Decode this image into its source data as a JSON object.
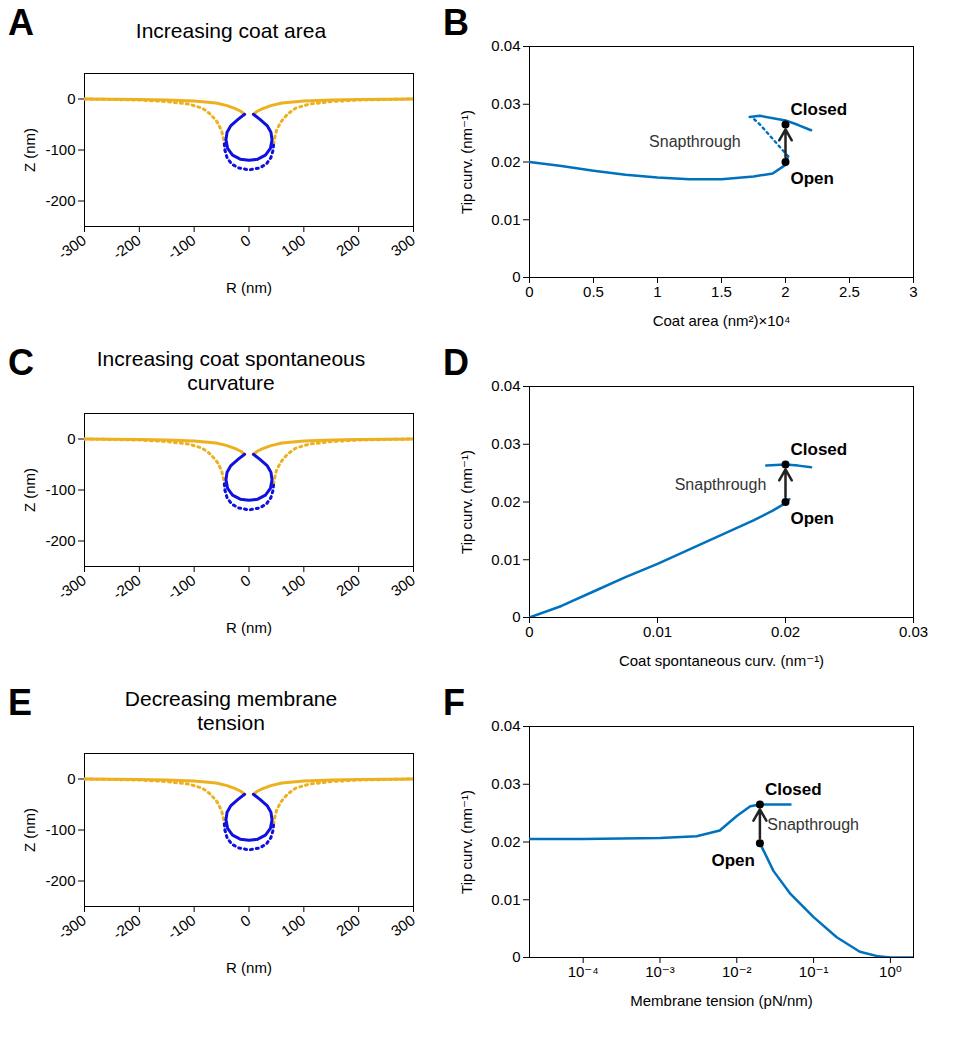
{
  "chart_data": [
    {
      "panel": "A",
      "type": "line",
      "title": "Increasing coat area",
      "x_label": "R (nm)",
      "y_label": "Z (nm)",
      "xlim": [
        -300,
        300
      ],
      "xticks": [
        -300,
        -200,
        -100,
        0,
        100,
        200,
        300
      ],
      "ylim": [
        -250,
        50
      ],
      "yticks": [
        -200,
        -100,
        0
      ],
      "series": [
        {
          "color": "#EDB120",
          "line_style": "dotted",
          "x": [
            -300,
            -200,
            -150,
            -110,
            -85,
            -70,
            -58,
            -50,
            -46,
            -45,
            null,
            45,
            46,
            50,
            58,
            70,
            85,
            110,
            150,
            200,
            300
          ],
          "y": [
            0,
            -2,
            -5,
            -10,
            -18,
            -30,
            -45,
            -62,
            -80,
            -88,
            null,
            -88,
            -80,
            -62,
            -45,
            -30,
            -18,
            -10,
            -5,
            -2,
            0
          ]
        },
        {
          "color": "#1010E0",
          "line_style": "dotted",
          "x": [
            -45,
            -44,
            -40,
            -32,
            -20,
            0,
            20,
            32,
            40,
            44,
            45
          ],
          "y": [
            -88,
            -100,
            -115,
            -127,
            -135,
            -139,
            -135,
            -127,
            -115,
            -100,
            -88
          ]
        },
        {
          "color": "#EDB120",
          "line_style": "solid",
          "x": [
            -300,
            -200,
            -150,
            -100,
            -60,
            -40,
            -25,
            -15,
            -8,
            null,
            8,
            15,
            25,
            40,
            60,
            100,
            150,
            200,
            300
          ],
          "y": [
            0,
            -1,
            -2,
            -4,
            -8,
            -13,
            -19,
            -24,
            -30,
            null,
            -30,
            -24,
            -19,
            -13,
            -8,
            -4,
            -2,
            -1,
            0
          ]
        },
        {
          "color": "#1010E0",
          "line_style": "solid",
          "x": [
            -8,
            -20,
            -33,
            -40,
            -42,
            -39,
            -30,
            -16,
            0,
            16,
            30,
            39,
            42,
            40,
            33,
            20,
            8
          ],
          "y": [
            -30,
            -40,
            -52,
            -65,
            -80,
            -97,
            -110,
            -118,
            -120,
            -118,
            -110,
            -97,
            -80,
            -65,
            -52,
            -40,
            -30
          ]
        }
      ]
    },
    {
      "panel": "B",
      "type": "line",
      "x_label": "Coat area (nm²)×10⁴",
      "y_label": "Tip curv. (nm⁻¹)",
      "xlim": [
        0,
        3
      ],
      "xticks": [
        0,
        0.5,
        1,
        1.5,
        2,
        2.5,
        3
      ],
      "ylim": [
        0,
        0.04
      ],
      "yticks": [
        0,
        0.01,
        0.02,
        0.03,
        0.04
      ],
      "series": [
        {
          "color": "#0072BD",
          "line_style": "solid",
          "x": [
            0,
            0.25,
            0.5,
            0.75,
            1,
            1.25,
            1.5,
            1.75,
            1.9,
            2.0,
            2.02
          ],
          "y": [
            0.02,
            0.0193,
            0.0185,
            0.0178,
            0.0173,
            0.017,
            0.017,
            0.0175,
            0.018,
            0.0195,
            0.021
          ]
        },
        {
          "color": "#0072BD",
          "line_style": "dotted",
          "x": [
            2.02,
            1.9,
            1.8,
            1.75
          ],
          "y": [
            0.021,
            0.024,
            0.0265,
            0.0275
          ]
        },
        {
          "color": "#0072BD",
          "line_style": "solid",
          "x": [
            1.72,
            1.8,
            2.0,
            2.1,
            2.2
          ],
          "y": [
            0.0278,
            0.028,
            0.0272,
            0.0264,
            0.0255
          ]
        }
      ],
      "points": [
        {
          "name": "Open",
          "x": 2.0,
          "y": 0.02
        },
        {
          "name": "Closed",
          "x": 2.0,
          "y": 0.0265
        }
      ],
      "annotations": [
        {
          "text": "Snapthrough",
          "x": 1.65,
          "y": 0.0235
        }
      ]
    },
    {
      "panel": "C",
      "type": "line",
      "title": "Increasing coat spontaneous curvature",
      "x_label": "R (nm)",
      "y_label": "Z (nm)",
      "xlim": [
        -300,
        300
      ],
      "xticks": [
        -300,
        -200,
        -100,
        0,
        100,
        200,
        300
      ],
      "ylim": [
        -250,
        50
      ],
      "yticks": [
        -200,
        -100,
        0
      ],
      "series": [
        {
          "color": "#EDB120",
          "line_style": "dotted",
          "x": [
            -300,
            -200,
            -150,
            -110,
            -85,
            -70,
            -58,
            -50,
            -46,
            -45,
            null,
            45,
            46,
            50,
            58,
            70,
            85,
            110,
            150,
            200,
            300
          ],
          "y": [
            0,
            -2,
            -5,
            -10,
            -18,
            -30,
            -45,
            -62,
            -80,
            -88,
            null,
            -88,
            -80,
            -62,
            -45,
            -30,
            -18,
            -10,
            -5,
            -2,
            0
          ]
        },
        {
          "color": "#1010E0",
          "line_style": "dotted",
          "x": [
            -45,
            -44,
            -40,
            -32,
            -20,
            0,
            20,
            32,
            40,
            44,
            45
          ],
          "y": [
            -88,
            -100,
            -115,
            -127,
            -135,
            -139,
            -135,
            -127,
            -115,
            -100,
            -88
          ]
        },
        {
          "color": "#EDB120",
          "line_style": "solid",
          "x": [
            -300,
            -200,
            -150,
            -100,
            -60,
            -40,
            -25,
            -15,
            -8,
            null,
            8,
            15,
            25,
            40,
            60,
            100,
            150,
            200,
            300
          ],
          "y": [
            0,
            -1,
            -2,
            -4,
            -8,
            -13,
            -19,
            -24,
            -30,
            null,
            -30,
            -24,
            -19,
            -13,
            -8,
            -4,
            -2,
            -1,
            0
          ]
        },
        {
          "color": "#1010E0",
          "line_style": "solid",
          "x": [
            -8,
            -20,
            -33,
            -40,
            -42,
            -39,
            -30,
            -16,
            0,
            16,
            30,
            39,
            42,
            40,
            33,
            20,
            8
          ],
          "y": [
            -30,
            -40,
            -52,
            -65,
            -80,
            -97,
            -110,
            -118,
            -120,
            -118,
            -110,
            -97,
            -80,
            -65,
            -52,
            -40,
            -30
          ]
        }
      ]
    },
    {
      "panel": "D",
      "type": "line",
      "x_label": "Coat spontaneous curv. (nm⁻¹)",
      "y_label": "Tip curv. (nm⁻¹)",
      "xlim": [
        0,
        0.03
      ],
      "xticks": [
        0,
        0.01,
        0.02,
        0.03
      ],
      "ylim": [
        0,
        0.04
      ],
      "yticks": [
        0,
        0.01,
        0.02,
        0.03,
        0.04
      ],
      "series": [
        {
          "color": "#0072BD",
          "line_style": "solid",
          "x": [
            0,
            0.0025,
            0.005,
            0.0075,
            0.01,
            0.0125,
            0.015,
            0.0175,
            0.019,
            0.02,
            0.0203
          ],
          "y": [
            0,
            0.002,
            0.0045,
            0.007,
            0.0093,
            0.0118,
            0.0143,
            0.0168,
            0.0185,
            0.0198,
            0.0205
          ]
        },
        {
          "color": "#0072BD",
          "line_style": "solid",
          "x": [
            0.0185,
            0.02,
            0.021,
            0.022
          ],
          "y": [
            0.0263,
            0.0265,
            0.0263,
            0.026
          ]
        }
      ],
      "points": [
        {
          "name": "Open",
          "x": 0.02,
          "y": 0.02
        },
        {
          "name": "Closed",
          "x": 0.02,
          "y": 0.0265
        }
      ],
      "annotations": [
        {
          "text": "Snapthrough",
          "x": 0.0185,
          "y": 0.023
        }
      ]
    },
    {
      "panel": "E",
      "type": "line",
      "title": "Decreasing membrane tension",
      "x_label": "R (nm)",
      "y_label": "Z (nm)",
      "xlim": [
        -300,
        300
      ],
      "xticks": [
        -300,
        -200,
        -100,
        0,
        100,
        200,
        300
      ],
      "ylim": [
        -250,
        50
      ],
      "yticks": [
        -200,
        -100,
        0
      ],
      "series": [
        {
          "color": "#EDB120",
          "line_style": "dotted",
          "x": [
            -300,
            -200,
            -150,
            -110,
            -85,
            -70,
            -58,
            -50,
            -46,
            -45,
            null,
            45,
            46,
            50,
            58,
            70,
            85,
            110,
            150,
            200,
            300
          ],
          "y": [
            0,
            -2,
            -5,
            -10,
            -18,
            -30,
            -45,
            -62,
            -80,
            -88,
            null,
            -88,
            -80,
            -62,
            -45,
            -30,
            -18,
            -10,
            -5,
            -2,
            0
          ]
        },
        {
          "color": "#1010E0",
          "line_style": "dotted",
          "x": [
            -45,
            -44,
            -40,
            -32,
            -20,
            0,
            20,
            32,
            40,
            44,
            45
          ],
          "y": [
            -88,
            -100,
            -115,
            -127,
            -135,
            -139,
            -135,
            -127,
            -115,
            -100,
            -88
          ]
        },
        {
          "color": "#EDB120",
          "line_style": "solid",
          "x": [
            -300,
            -200,
            -150,
            -100,
            -60,
            -40,
            -25,
            -15,
            -8,
            null,
            8,
            15,
            25,
            40,
            60,
            100,
            150,
            200,
            300
          ],
          "y": [
            0,
            -1,
            -2,
            -4,
            -8,
            -13,
            -19,
            -24,
            -30,
            null,
            -30,
            -24,
            -19,
            -13,
            -8,
            -4,
            -2,
            -1,
            0
          ]
        },
        {
          "color": "#1010E0",
          "line_style": "solid",
          "x": [
            -8,
            -20,
            -33,
            -40,
            -42,
            -39,
            -30,
            -16,
            0,
            16,
            30,
            39,
            42,
            40,
            33,
            20,
            8
          ],
          "y": [
            -30,
            -40,
            -52,
            -65,
            -80,
            -97,
            -110,
            -118,
            -120,
            -118,
            -110,
            -97,
            -80,
            -65,
            -52,
            -40,
            -30
          ]
        }
      ]
    },
    {
      "panel": "F",
      "type": "line",
      "log": "x",
      "x_label": "Membrane tension (pN/nm)",
      "y_label": "Tip curv. (nm⁻¹)",
      "xlim": [
        2e-05,
        2
      ],
      "xticks": [
        {
          "value": 0.0001,
          "label": "10⁻⁴"
        },
        {
          "value": 0.001,
          "label": "10⁻³"
        },
        {
          "value": 0.01,
          "label": "10⁻²"
        },
        {
          "value": 0.1,
          "label": "10⁻¹"
        },
        {
          "value": 1,
          "label": "10⁰"
        }
      ],
      "ylim": [
        0,
        0.04
      ],
      "yticks": [
        0,
        0.01,
        0.02,
        0.03,
        0.04
      ],
      "series": [
        {
          "color": "#0072BD",
          "line_style": "solid",
          "x": [
            2e-05,
            0.0001,
            0.001,
            0.003,
            0.006,
            0.01,
            0.015,
            0.02,
            0.03,
            0.05
          ],
          "y": [
            0.0205,
            0.0205,
            0.0207,
            0.021,
            0.022,
            0.0245,
            0.0262,
            0.0265,
            0.0265,
            0.0265
          ]
        },
        {
          "color": "#0072BD",
          "line_style": "solid",
          "x": [
            0.02,
            0.03,
            0.05,
            0.1,
            0.2,
            0.4,
            0.7,
            1,
            2
          ],
          "y": [
            0.0198,
            0.015,
            0.011,
            0.007,
            0.0035,
            0.001,
            0.0002,
            0,
            0
          ]
        }
      ],
      "points": [
        {
          "name": "Open",
          "x": 0.02,
          "y": 0.0198
        },
        {
          "name": "Closed",
          "x": 0.02,
          "y": 0.0265
        }
      ],
      "annotations": [
        {
          "text": "Snapthrough",
          "x": 0.025,
          "y": 0.023
        }
      ]
    }
  ]
}
